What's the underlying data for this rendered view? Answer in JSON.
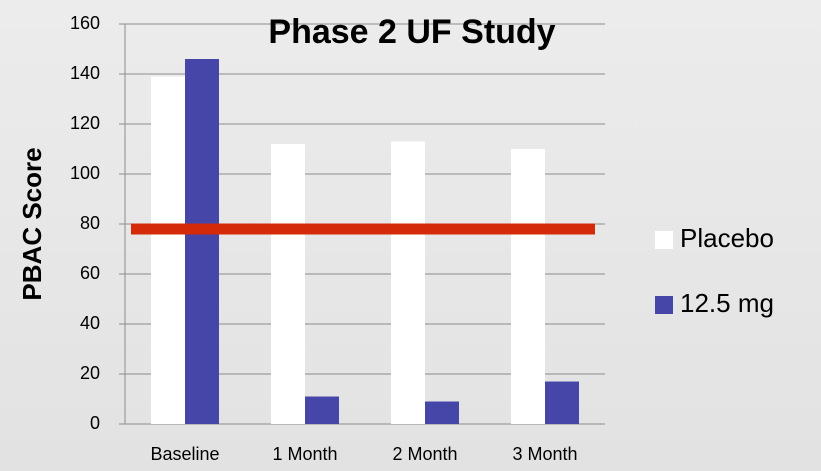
{
  "chart_data": {
    "type": "bar",
    "title": "Phase 2 UF Study",
    "y_label": "PBAC Score",
    "categories": [
      "Baseline",
      "1 Month",
      "2 Month",
      "3 Month"
    ],
    "series": [
      {
        "name": "Placebo",
        "color": "#ffffff",
        "values": [
          139,
          112,
          113,
          110
        ]
      },
      {
        "name": "12.5 mg",
        "color": "#4646a8",
        "values": [
          146,
          11,
          9,
          17
        ]
      }
    ],
    "reference_line": {
      "value": 78,
      "color": "#d42a0a"
    },
    "ylim": [
      0,
      160
    ],
    "yticks": [
      0,
      20,
      40,
      60,
      80,
      100,
      120,
      140,
      160
    ],
    "grid": true,
    "legend": "right"
  }
}
